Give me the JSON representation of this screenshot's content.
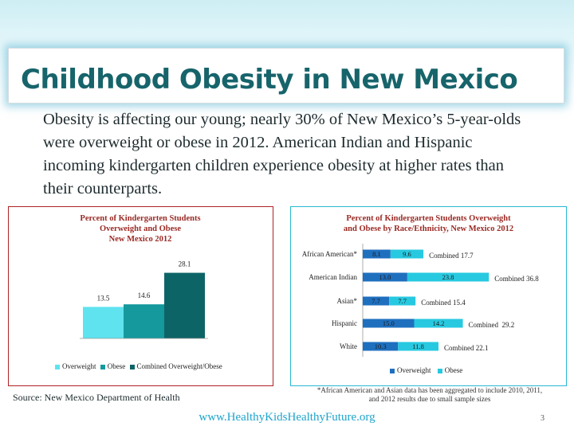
{
  "slide": {
    "title": "Childhood Obesity in New Mexico",
    "body": "Obesity is affecting our young; nearly 30% of New Mexico’s 5-year-olds were overweight or obese in 2012. American Indian and Hispanic incoming kindergarten children experience obesity at higher rates than their counterparts.",
    "source": "Source: New Mexico Department of Health",
    "url": "www.HealthyKidsHealthyFuture.org",
    "page_number": "3",
    "footnote_line1": "*African American and Asian data has been aggregated to include 2010, 2011,",
    "footnote_line2": "and 2012 results due to small sample sizes"
  },
  "colors": {
    "title": "#17646b",
    "overweight": "#5ee3ef",
    "obese": "#15999d",
    "combined": "#0d6467",
    "race_overweight": "#1f6fbf",
    "race_obese": "#27c9e0",
    "left_border": "#b02125",
    "right_border": "#28b9d1",
    "chart_title": "#9a2a24"
  },
  "chart_data": [
    {
      "type": "bar",
      "title_line1": "Percent of Kindergarten Students",
      "title_line2": "Overweight and Obese",
      "title_line3": "New Mexico 2012",
      "categories": [
        "Overweight",
        "Obese",
        "Combined Overweight/Obese"
      ],
      "values": [
        13.5,
        14.6,
        28.1
      ],
      "value_labels": [
        "13.5",
        "14.6",
        "28.1"
      ],
      "legend": [
        "Overweight",
        "Obese",
        "Combined Overweight/Obese"
      ],
      "ylim": [
        0,
        30
      ],
      "legend_position": "bottom"
    },
    {
      "type": "bar",
      "orientation": "horizontal",
      "stacked": true,
      "title_line1": "Percent of Kindergarten Students Overweight",
      "title_line2": "and Obese by Race/Ethnicity, New Mexico 2012",
      "categories": [
        "African American*",
        "American Indian",
        "Asian*",
        "Hispanic",
        "White"
      ],
      "series": [
        {
          "name": "Overweight",
          "values": [
            8.1,
            13.0,
            7.7,
            15.0,
            10.3
          ],
          "labels": [
            "8.1",
            "13.0",
            "7.7",
            "15.0",
            "10.3"
          ]
        },
        {
          "name": "Obese",
          "values": [
            9.6,
            23.8,
            7.7,
            14.2,
            11.8
          ],
          "labels": [
            "9.6",
            "23.8",
            "7.7",
            "14.2",
            "11.8"
          ]
        }
      ],
      "combined_labels": [
        "Combined 17.7",
        "Combined 36.8",
        "Combined 15.4",
        "Combined  29.2",
        "Combined 22.1"
      ],
      "xlim": [
        0,
        40
      ],
      "legend_position": "bottom"
    }
  ]
}
